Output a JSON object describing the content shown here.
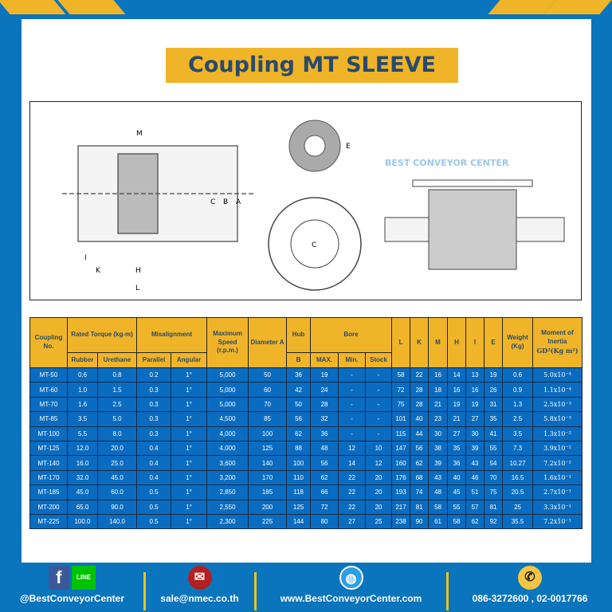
{
  "title": "Coupling MT SLEEVE",
  "watermark": "BEST CONVEYOR CENTER",
  "diagram_labels": [
    "M",
    "C",
    "B",
    "A",
    "I",
    "K",
    "H",
    "L",
    "E",
    "C"
  ],
  "table": {
    "headers": {
      "coupling": "Coupling No.",
      "torque": "Rated Torque (kg-m)",
      "rubber": "Rubber",
      "urethane": "Urethane",
      "misalign": "Misalignment",
      "parallel": "Parallel",
      "angular": "Angular",
      "speed": "Maximum Speed (r.p.m.)",
      "diameter": "Diameter A",
      "hub": "Hub",
      "hub_b": "B",
      "bore": "Bore",
      "max": "MAX.",
      "min": "Min.",
      "stock": "Stock",
      "L": "L",
      "K": "K",
      "M": "M",
      "H": "H",
      "I": "I",
      "E": "E",
      "weight": "Weight (Kg)",
      "inertia": "Moment of Inertia",
      "inertia_unit": "GD²(Kg m²)"
    },
    "rows": [
      [
        "MT-50",
        "0.6",
        "0.8",
        "0.2",
        "1°",
        "5,000",
        "50",
        "36",
        "19",
        "-",
        "-",
        "58",
        "22",
        "16",
        "14",
        "13",
        "19",
        "0.6",
        "5.0x10⁻⁴"
      ],
      [
        "MT-60",
        "1.0",
        "1.5",
        "0.3",
        "1°",
        "5,000",
        "60",
        "42",
        "24",
        "-",
        "-",
        "72",
        "28",
        "18",
        "16",
        "16",
        "26",
        "0.9",
        "1.1x10⁻⁴"
      ],
      [
        "MT-70",
        "1.6",
        "2.5",
        "0.3",
        "1°",
        "5,000",
        "70",
        "50",
        "28",
        "-",
        "-",
        "75",
        "28",
        "21",
        "19",
        "19",
        "31",
        "1.3",
        "2.5x10⁻³"
      ],
      [
        "MT-85",
        "3.5",
        "5.0",
        "0.3",
        "1°",
        "4,500",
        "85",
        "56",
        "32",
        "-",
        "-",
        "101",
        "40",
        "23",
        "21",
        "27",
        "35",
        "2.5",
        "5.8x10⁻³"
      ],
      [
        "MT-100",
        "5.5",
        "8.0",
        "0.3",
        "1°",
        "4,000",
        "100",
        "62",
        "36",
        "-",
        "-",
        "115",
        "44",
        "30",
        "27",
        "30",
        "41",
        "3.5",
        "1.3x10⁻²"
      ],
      [
        "MT-125",
        "12.0",
        "20.0",
        "0.4",
        "1°",
        "4,000",
        "125",
        "88",
        "48",
        "12",
        "10",
        "147",
        "56",
        "38",
        "35",
        "39",
        "55",
        "7.3",
        "3.9x10⁻²"
      ],
      [
        "MT-140",
        "16.0",
        "25.0",
        "0.4",
        "1°",
        "3,600",
        "140",
        "100",
        "56",
        "14",
        "12",
        "160",
        "62",
        "39",
        "36",
        "43",
        "54",
        "10.27",
        "7.2x10⁻²"
      ],
      [
        "MT-170",
        "32.0",
        "45.0",
        "0.4",
        "1°",
        "3,200",
        "170",
        "110",
        "62",
        "22",
        "20",
        "176",
        "68",
        "43",
        "40",
        "46",
        "70",
        "16.5",
        "1.6x10⁻¹"
      ],
      [
        "MT-185",
        "45.0",
        "60.0",
        "0.5",
        "1°",
        "2,850",
        "185",
        "118",
        "66",
        "22",
        "20",
        "193",
        "74",
        "48",
        "45",
        "51",
        "75",
        "20.5",
        "2.7x10⁻¹"
      ],
      [
        "MT-200",
        "65.0",
        "90.0",
        "0.5",
        "1°",
        "2,550",
        "200",
        "125",
        "72",
        "22",
        "20",
        "217",
        "81",
        "58",
        "55",
        "57",
        "81",
        "25",
        "3.3x10⁻¹"
      ],
      [
        "MT-225",
        "100.0",
        "140.0",
        "0.5",
        "1°",
        "2,300",
        "225",
        "144",
        "80",
        "27",
        "25",
        "238",
        "90",
        "61",
        "58",
        "62",
        "92",
        "35.5",
        "7.2x10⁻¹"
      ]
    ]
  },
  "footer": {
    "facebook": "@BestConveyorCenter",
    "line_badge": "LINE",
    "email": "sale@nmec.co.th",
    "website": "www.BestConveyorCenter.com",
    "phone": "086-3272600 , 02-0017766"
  },
  "colors": {
    "blue": "#0a74bd",
    "yellow": "#f0b429",
    "title_text": "#2a4a6a"
  }
}
